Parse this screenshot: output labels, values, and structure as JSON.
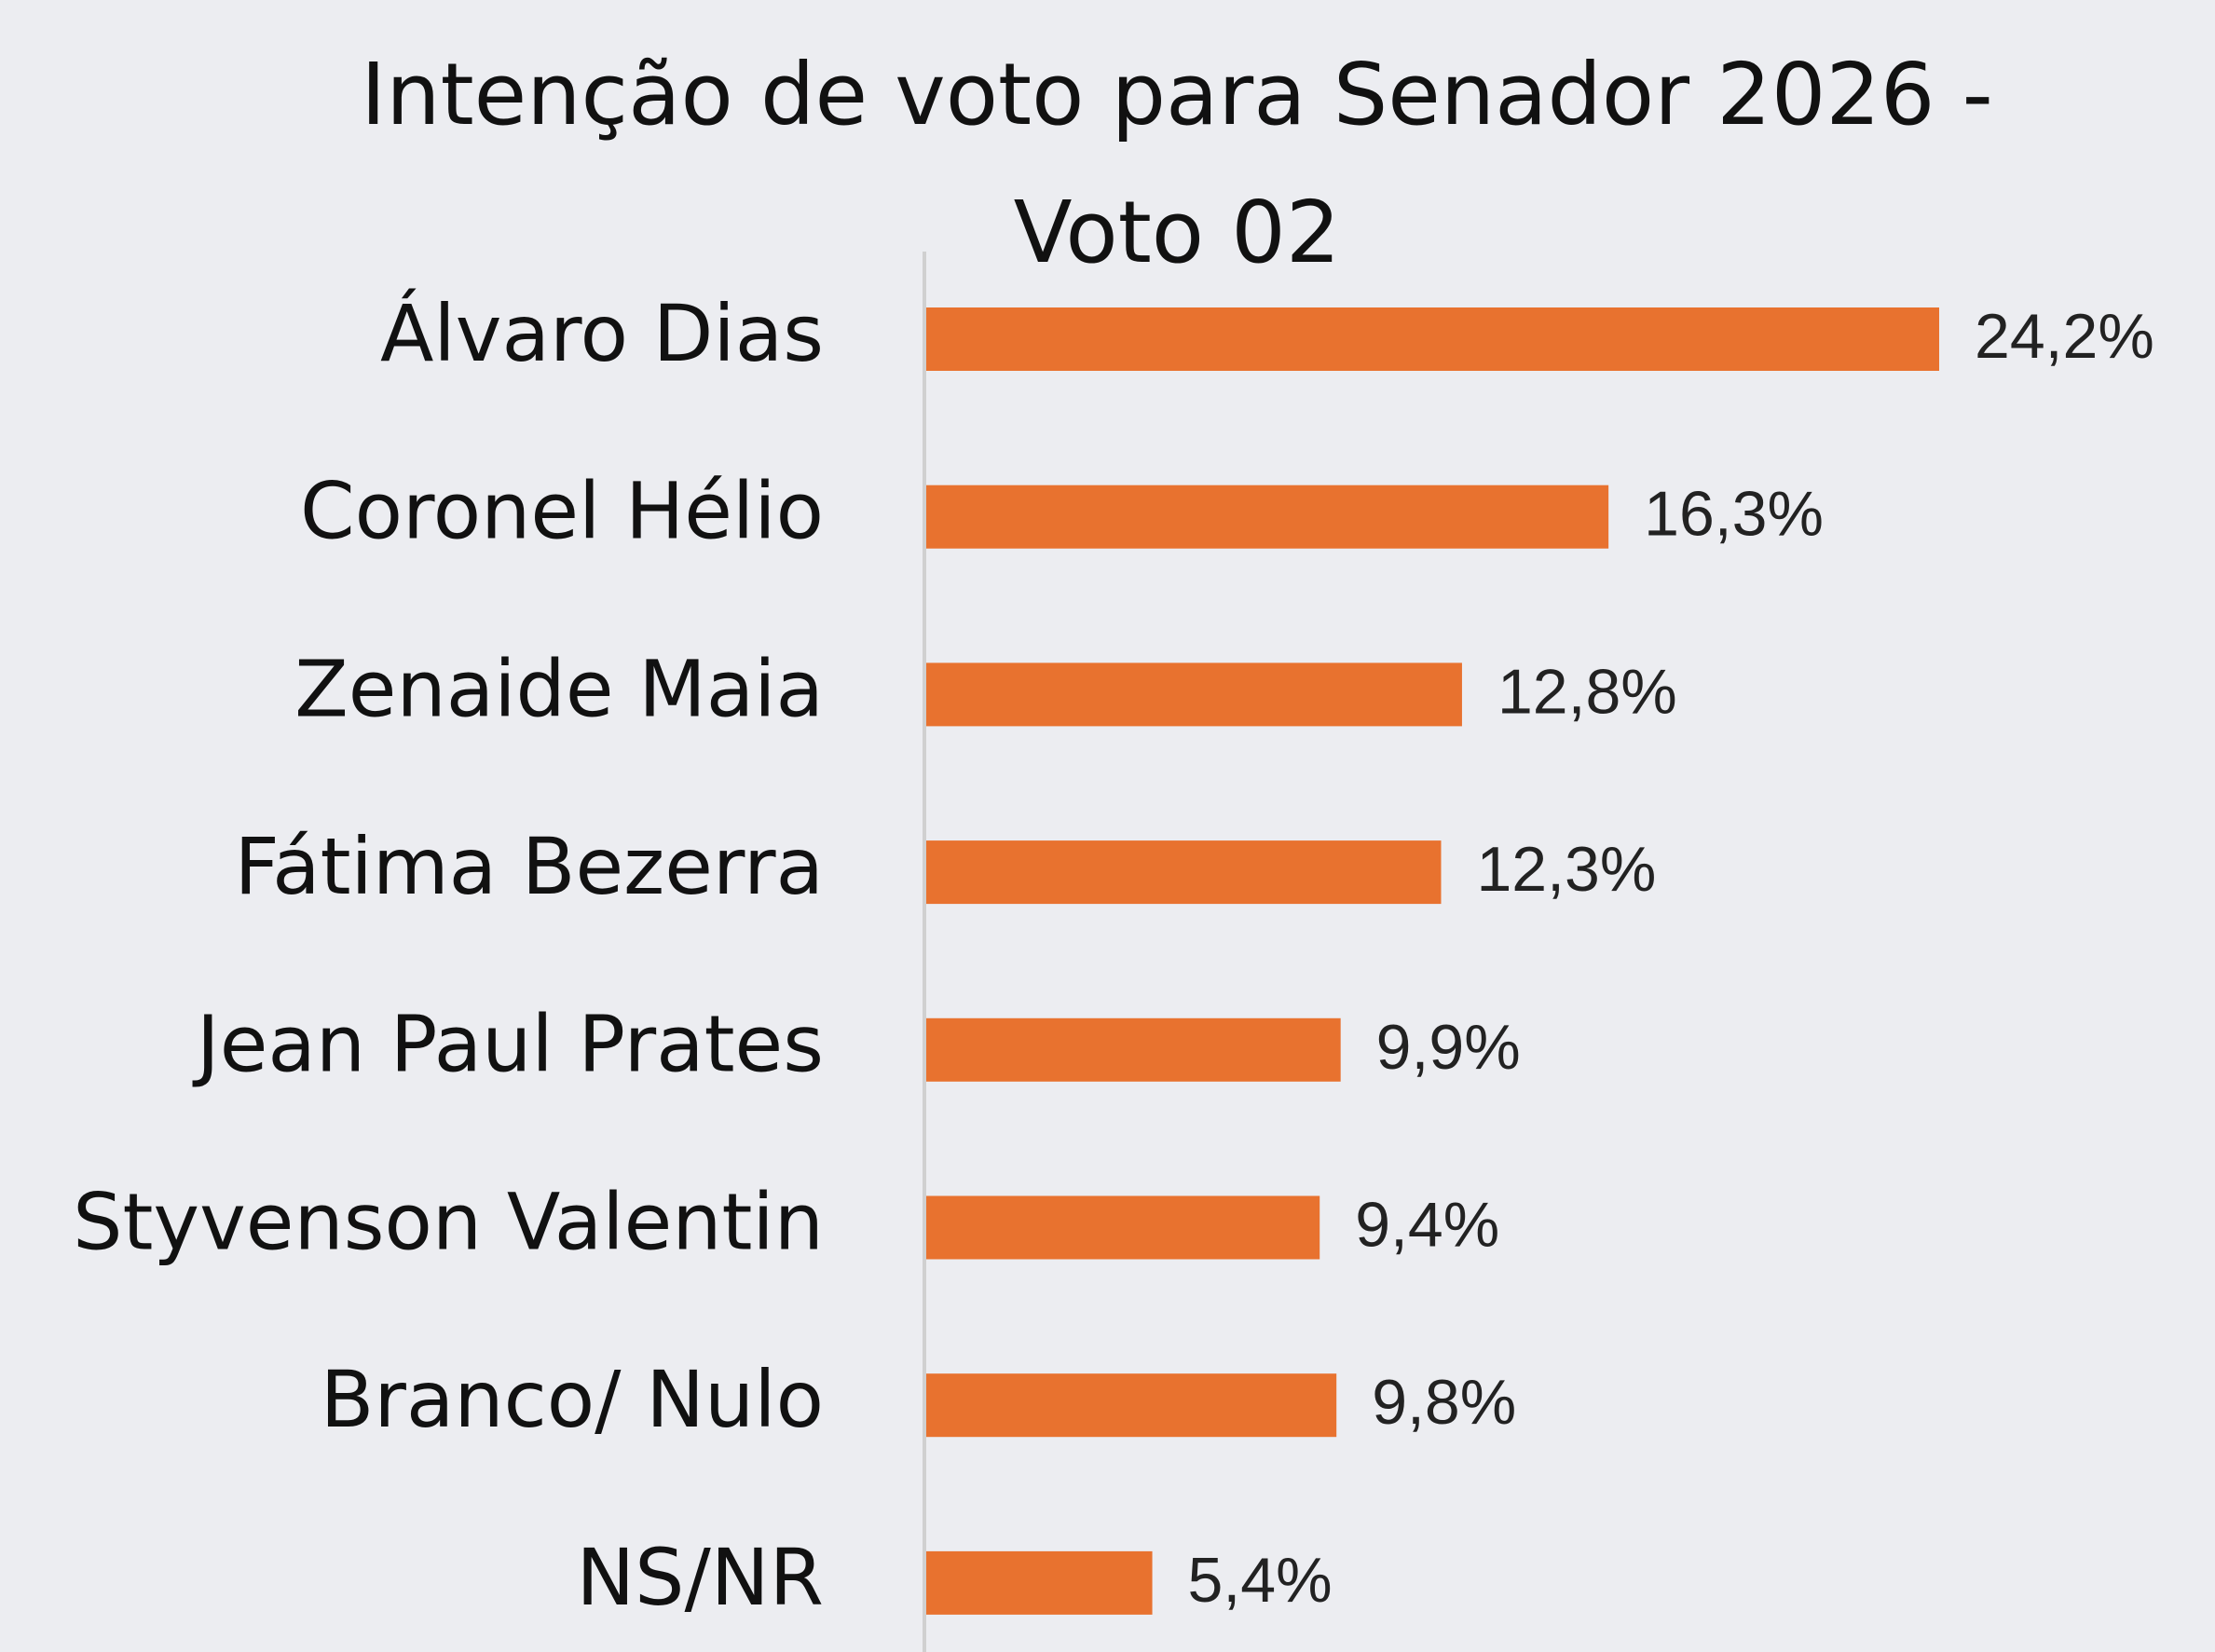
{
  "chart_data": {
    "type": "bar",
    "orientation": "horizontal",
    "title": "Intenção de voto para Senador 2026 - Voto 02",
    "categories": [
      "Álvaro Dias",
      "Coronel Hélio",
      "Zenaide Maia",
      "Fátima Bezerra",
      "Jean Paul Prates",
      "Styvenson Valentin",
      "Branco/ Nulo",
      "NS/NR"
    ],
    "values": [
      24.2,
      16.3,
      12.8,
      12.3,
      9.9,
      9.4,
      9.8,
      5.4
    ],
    "value_labels": [
      "24,2%",
      "16,3%",
      "12,8%",
      "12,3%",
      "9,9%",
      "9,4%",
      "9,8%",
      "5,4%"
    ],
    "color": "#e8722f"
  }
}
